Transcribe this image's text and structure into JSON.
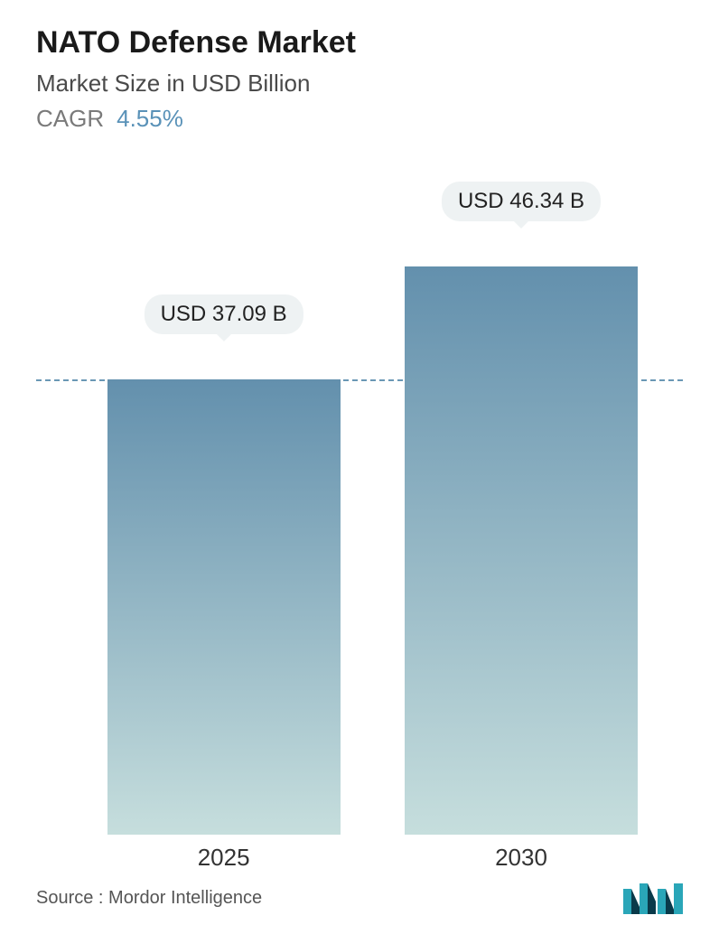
{
  "header": {
    "title": "NATO Defense Market",
    "title_fontsize": 34,
    "title_color": "#1a1a1a",
    "subtitle": "Market Size in USD Billion",
    "subtitle_fontsize": 26,
    "subtitle_color": "#4a4a4a",
    "cagr_label": "CAGR",
    "cagr_label_fontsize": 26,
    "cagr_label_color": "#7a7a7a",
    "cagr_value": "4.55%",
    "cagr_value_fontsize": 26,
    "cagr_value_color": "#5a92b8"
  },
  "chart": {
    "type": "bar",
    "background_color": "#ffffff",
    "ymax": 55,
    "dashed_line": {
      "value": 37.09,
      "color": "#6a98b5",
      "dash": "8,8",
      "width": 2
    },
    "bar_width_pct": 36,
    "bar_gradient_top": "#6390ad",
    "bar_gradient_bottom": "#c6dedd",
    "value_label_bg": "#eef2f3",
    "value_label_fontsize": 24,
    "xlabel_fontsize": 26,
    "xlabel_color": "#333333",
    "bars": [
      {
        "category": "2025",
        "value": 37.09,
        "value_label": "USD 37.09 B",
        "center_pct": 29
      },
      {
        "category": "2030",
        "value": 46.34,
        "value_label": "USD 46.34 B",
        "center_pct": 75
      }
    ]
  },
  "footer": {
    "source_text": "Source :  Mordor Intelligence",
    "source_fontsize": 20,
    "source_color": "#555555",
    "logo_color_primary": "#2aa6b8",
    "logo_color_dark": "#0a3a4a"
  }
}
